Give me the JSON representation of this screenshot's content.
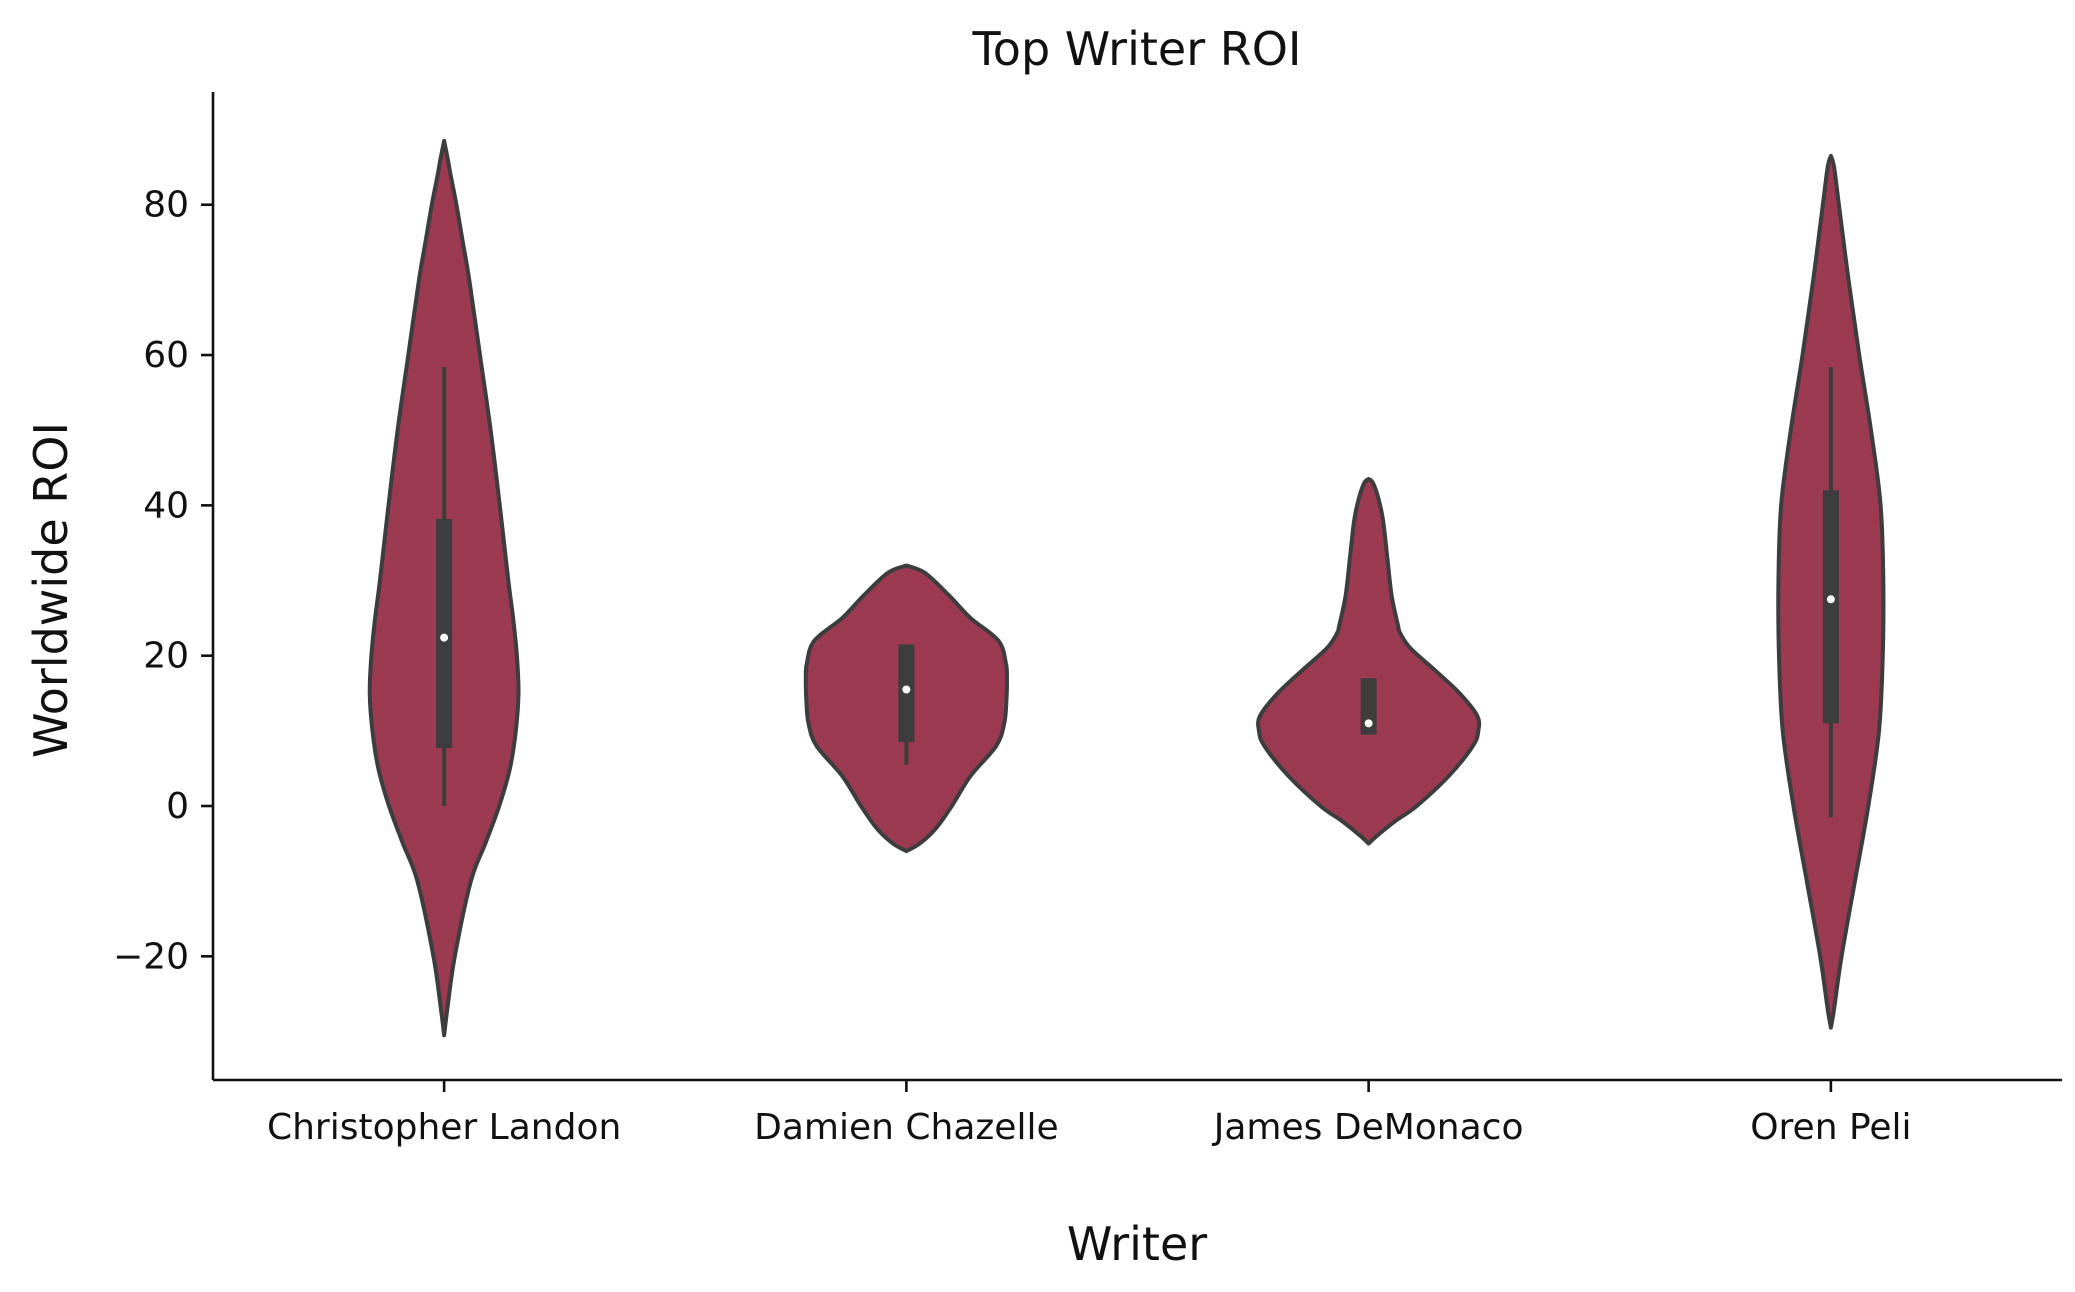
{
  "chart_data": {
    "type": "violin",
    "title": "Top Writer ROI",
    "xlabel": "Writer",
    "ylabel": "Worldwide ROI",
    "categories": [
      "Christopher Landon",
      "Damien Chazelle",
      "James DeMonaco",
      "Oren Peli"
    ],
    "yticks": [
      -20,
      0,
      20,
      40,
      60,
      80
    ],
    "ytick_labels": [
      "−20",
      "0",
      "20",
      "40",
      "60",
      "80"
    ],
    "ylim": [
      -36.5,
      95
    ],
    "grid": false,
    "colors": {
      "violin_fill": "#9b3a50",
      "violin_edge": "#3d3d3d",
      "box": "#3d3d3d",
      "median": "#ffffff",
      "axis": "#111111"
    },
    "violins": [
      {
        "category": "Christopher Landon",
        "min": 0,
        "q1": 7.7,
        "median": 22.4,
        "q3": 38.2,
        "max": 58.4,
        "kde": [
          [
            -30.5,
            0.0
          ],
          [
            -27,
            0.6
          ],
          [
            -20,
            2.0
          ],
          [
            -10,
            5.0
          ],
          [
            -5,
            7.7
          ],
          [
            0,
            10.3
          ],
          [
            5,
            12.3
          ],
          [
            10,
            13.4
          ],
          [
            15,
            13.9
          ],
          [
            20,
            13.6
          ],
          [
            25,
            12.9
          ],
          [
            30,
            12.0
          ],
          [
            40,
            10.4
          ],
          [
            50,
            8.7
          ],
          [
            60,
            6.7
          ],
          [
            70,
            4.7
          ],
          [
            75,
            3.5
          ],
          [
            80,
            2.3
          ],
          [
            84,
            1.2
          ],
          [
            86,
            0.7
          ],
          [
            88.5,
            0.0
          ]
        ]
      },
      {
        "category": "Damien Chazelle",
        "min": 5.5,
        "q1": 8.5,
        "median": 15.5,
        "q3": 21.5,
        "max": 21.5,
        "kde": [
          [
            -6,
            0.0
          ],
          [
            -5,
            2.5
          ],
          [
            -3,
            5.5
          ],
          [
            0,
            8.5
          ],
          [
            4,
            12.0
          ],
          [
            8,
            16.8
          ],
          [
            11,
            18.3
          ],
          [
            14,
            18.7
          ],
          [
            17,
            18.8
          ],
          [
            19,
            18.6
          ],
          [
            22,
            17.2
          ],
          [
            25,
            12.0
          ],
          [
            28,
            8.0
          ],
          [
            31,
            3.5
          ],
          [
            32,
            0.0
          ]
        ]
      },
      {
        "category": "James DeMonaco",
        "min": 9.5,
        "q1": 9.5,
        "median": 11.0,
        "q3": 17.0,
        "max": 17.0,
        "kde": [
          [
            -5,
            0.0
          ],
          [
            -4,
            1.5
          ],
          [
            -2,
            5.0
          ],
          [
            0,
            9.0
          ],
          [
            4,
            15.0
          ],
          [
            8,
            19.5
          ],
          [
            10,
            20.5
          ],
          [
            12,
            20.3
          ],
          [
            15,
            17.0
          ],
          [
            18,
            12.5
          ],
          [
            21,
            7.8
          ],
          [
            23,
            5.9
          ],
          [
            24,
            5.5
          ],
          [
            28,
            4.3
          ],
          [
            33,
            3.5
          ],
          [
            38,
            2.7
          ],
          [
            41,
            1.8
          ],
          [
            43,
            0.8
          ],
          [
            43.5,
            0.0
          ]
        ]
      },
      {
        "category": "Oren Peli",
        "min": -1.5,
        "q1": 11.0,
        "median": 27.5,
        "q3": 42.0,
        "max": 58.4,
        "kde": [
          [
            -29.5,
            0.0
          ],
          [
            -27,
            0.6
          ],
          [
            -20,
            2.0
          ],
          [
            -10,
            4.5
          ],
          [
            0,
            7.0
          ],
          [
            10,
            9.0
          ],
          [
            20,
            9.7
          ],
          [
            30,
            9.8
          ],
          [
            40,
            9.3
          ],
          [
            50,
            7.5
          ],
          [
            60,
            5.3
          ],
          [
            70,
            3.3
          ],
          [
            80,
            1.5
          ],
          [
            85,
            0.6
          ],
          [
            86.5,
            0.0
          ]
        ]
      }
    ]
  }
}
